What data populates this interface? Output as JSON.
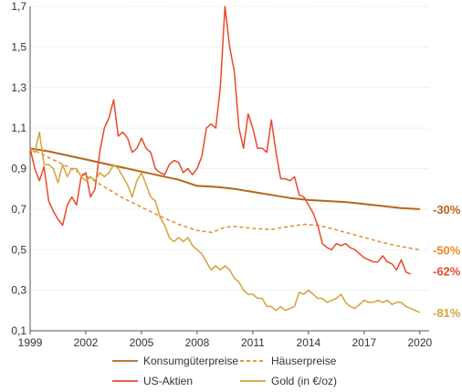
{
  "chart_data": {
    "type": "line",
    "title": "",
    "xlabel": "",
    "ylabel": "",
    "xlim": [
      1999,
      2020.5
    ],
    "ylim": [
      0.1,
      1.7
    ],
    "x_ticks": [
      1999,
      2002,
      2005,
      2008,
      2011,
      2014,
      2017,
      2020
    ],
    "y_ticks": [
      0.1,
      0.3,
      0.5,
      0.7,
      0.9,
      1.1,
      1.3,
      1.5,
      1.7
    ],
    "y_tick_labels": [
      "0,1",
      "0,3",
      "0,5",
      "0,7",
      "0,9",
      "1,1",
      "1,3",
      "1,5",
      "1,7"
    ],
    "grid": "horizontal-dotted",
    "legend_position": "bottom",
    "series": [
      {
        "name": "Konsumgüterpreise",
        "color": "#b5651d",
        "style": "solid",
        "end_label": "-30%",
        "points": [
          [
            1999.0,
            1.0
          ],
          [
            2000.0,
            0.985
          ],
          [
            2001.0,
            0.965
          ],
          [
            2002.0,
            0.945
          ],
          [
            2003.0,
            0.925
          ],
          [
            2004.0,
            0.905
          ],
          [
            2005.0,
            0.885
          ],
          [
            2006.0,
            0.865
          ],
          [
            2007.0,
            0.845
          ],
          [
            2008.0,
            0.815
          ],
          [
            2009.0,
            0.81
          ],
          [
            2010.0,
            0.8
          ],
          [
            2011.0,
            0.785
          ],
          [
            2012.0,
            0.77
          ],
          [
            2013.0,
            0.755
          ],
          [
            2014.0,
            0.745
          ],
          [
            2015.0,
            0.74
          ],
          [
            2016.0,
            0.735
          ],
          [
            2017.0,
            0.725
          ],
          [
            2018.0,
            0.715
          ],
          [
            2019.0,
            0.705
          ],
          [
            2020.0,
            0.7
          ]
        ]
      },
      {
        "name": "Häuserpreise",
        "color": "#e8892e",
        "style": "dashed",
        "end_label": "-50%",
        "points": [
          [
            1999.0,
            1.0
          ],
          [
            2000.0,
            0.955
          ],
          [
            2001.0,
            0.91
          ],
          [
            2002.0,
            0.865
          ],
          [
            2003.0,
            0.81
          ],
          [
            2004.0,
            0.755
          ],
          [
            2005.0,
            0.71
          ],
          [
            2006.0,
            0.665
          ],
          [
            2007.0,
            0.625
          ],
          [
            2008.0,
            0.595
          ],
          [
            2008.8,
            0.585
          ],
          [
            2009.5,
            0.61
          ],
          [
            2010.0,
            0.615
          ],
          [
            2011.0,
            0.605
          ],
          [
            2012.0,
            0.6
          ],
          [
            2013.0,
            0.615
          ],
          [
            2013.8,
            0.625
          ],
          [
            2014.5,
            0.62
          ],
          [
            2015.0,
            0.61
          ],
          [
            2016.0,
            0.585
          ],
          [
            2017.0,
            0.56
          ],
          [
            2018.0,
            0.535
          ],
          [
            2019.0,
            0.515
          ],
          [
            2020.0,
            0.5
          ]
        ]
      },
      {
        "name": "US-Aktien",
        "color": "#e84a2a",
        "style": "solid",
        "end_label": "-62%",
        "points": [
          [
            1999.0,
            1.0
          ],
          [
            1999.25,
            0.9
          ],
          [
            1999.5,
            0.84
          ],
          [
            1999.75,
            0.91
          ],
          [
            2000.0,
            0.74
          ],
          [
            2000.25,
            0.69
          ],
          [
            2000.5,
            0.65
          ],
          [
            2000.75,
            0.62
          ],
          [
            2001.0,
            0.72
          ],
          [
            2001.25,
            0.76
          ],
          [
            2001.5,
            0.72
          ],
          [
            2001.75,
            0.86
          ],
          [
            2002.0,
            0.88
          ],
          [
            2002.25,
            0.76
          ],
          [
            2002.5,
            0.8
          ],
          [
            2002.75,
            0.98
          ],
          [
            2003.0,
            1.1
          ],
          [
            2003.25,
            1.15
          ],
          [
            2003.5,
            1.24
          ],
          [
            2003.75,
            1.06
          ],
          [
            2004.0,
            1.08
          ],
          [
            2004.25,
            1.05
          ],
          [
            2004.5,
            0.98
          ],
          [
            2004.75,
            1.0
          ],
          [
            2005.0,
            1.05
          ],
          [
            2005.25,
            1.0
          ],
          [
            2005.5,
            0.98
          ],
          [
            2005.75,
            0.9
          ],
          [
            2006.0,
            0.88
          ],
          [
            2006.25,
            0.87
          ],
          [
            2006.5,
            0.92
          ],
          [
            2006.75,
            0.94
          ],
          [
            2007.0,
            0.93
          ],
          [
            2007.25,
            0.88
          ],
          [
            2007.5,
            0.9
          ],
          [
            2007.75,
            0.87
          ],
          [
            2008.0,
            0.9
          ],
          [
            2008.25,
            0.96
          ],
          [
            2008.5,
            1.1
          ],
          [
            2008.75,
            1.12
          ],
          [
            2009.0,
            1.1
          ],
          [
            2009.25,
            1.3
          ],
          [
            2009.5,
            1.7
          ],
          [
            2009.75,
            1.5
          ],
          [
            2010.0,
            1.38
          ],
          [
            2010.25,
            1.1
          ],
          [
            2010.5,
            1.0
          ],
          [
            2010.75,
            1.17
          ],
          [
            2011.0,
            1.1
          ],
          [
            2011.25,
            1.0
          ],
          [
            2011.5,
            1.0
          ],
          [
            2011.75,
            0.98
          ],
          [
            2012.0,
            1.14
          ],
          [
            2012.25,
            0.98
          ],
          [
            2012.5,
            0.85
          ],
          [
            2012.75,
            0.85
          ],
          [
            2013.0,
            0.84
          ],
          [
            2013.25,
            0.86
          ],
          [
            2013.5,
            0.77
          ],
          [
            2013.75,
            0.76
          ],
          [
            2014.0,
            0.72
          ],
          [
            2014.25,
            0.68
          ],
          [
            2014.5,
            0.62
          ],
          [
            2014.75,
            0.53
          ],
          [
            2015.0,
            0.51
          ],
          [
            2015.25,
            0.5
          ],
          [
            2015.5,
            0.53
          ],
          [
            2015.75,
            0.52
          ],
          [
            2016.0,
            0.53
          ],
          [
            2016.25,
            0.51
          ],
          [
            2016.5,
            0.5
          ],
          [
            2016.75,
            0.48
          ],
          [
            2017.0,
            0.46
          ],
          [
            2017.25,
            0.45
          ],
          [
            2017.5,
            0.44
          ],
          [
            2017.75,
            0.44
          ],
          [
            2018.0,
            0.47
          ],
          [
            2018.25,
            0.44
          ],
          [
            2018.5,
            0.43
          ],
          [
            2018.75,
            0.4
          ],
          [
            2019.0,
            0.45
          ],
          [
            2019.25,
            0.39
          ],
          [
            2019.5,
            0.38
          ]
        ]
      },
      {
        "name": "Gold (in €/oz)",
        "color": "#d4a33a",
        "style": "solid",
        "end_label": "-81%",
        "points": [
          [
            1999.0,
            1.0
          ],
          [
            1999.25,
            0.98
          ],
          [
            1999.5,
            1.08
          ],
          [
            1999.75,
            0.92
          ],
          [
            2000.0,
            0.92
          ],
          [
            2000.25,
            0.9
          ],
          [
            2000.5,
            0.83
          ],
          [
            2000.75,
            0.92
          ],
          [
            2001.0,
            0.86
          ],
          [
            2001.25,
            0.9
          ],
          [
            2001.5,
            0.9
          ],
          [
            2001.75,
            0.86
          ],
          [
            2002.0,
            0.84
          ],
          [
            2002.25,
            0.86
          ],
          [
            2002.5,
            0.84
          ],
          [
            2002.75,
            0.88
          ],
          [
            2003.0,
            0.86
          ],
          [
            2003.25,
            0.88
          ],
          [
            2003.5,
            0.92
          ],
          [
            2003.75,
            0.9
          ],
          [
            2004.0,
            0.86
          ],
          [
            2004.25,
            0.82
          ],
          [
            2004.5,
            0.76
          ],
          [
            2004.75,
            0.84
          ],
          [
            2005.0,
            0.88
          ],
          [
            2005.25,
            0.82
          ],
          [
            2005.5,
            0.76
          ],
          [
            2005.75,
            0.74
          ],
          [
            2006.0,
            0.66
          ],
          [
            2006.25,
            0.62
          ],
          [
            2006.5,
            0.56
          ],
          [
            2006.75,
            0.54
          ],
          [
            2007.0,
            0.56
          ],
          [
            2007.25,
            0.54
          ],
          [
            2007.5,
            0.56
          ],
          [
            2007.75,
            0.52
          ],
          [
            2008.0,
            0.5
          ],
          [
            2008.25,
            0.48
          ],
          [
            2008.5,
            0.44
          ],
          [
            2008.75,
            0.4
          ],
          [
            2009.0,
            0.42
          ],
          [
            2009.25,
            0.4
          ],
          [
            2009.5,
            0.42
          ],
          [
            2009.75,
            0.4
          ],
          [
            2010.0,
            0.36
          ],
          [
            2010.25,
            0.34
          ],
          [
            2010.5,
            0.3
          ],
          [
            2010.75,
            0.28
          ],
          [
            2011.0,
            0.28
          ],
          [
            2011.25,
            0.26
          ],
          [
            2011.5,
            0.26
          ],
          [
            2011.75,
            0.22
          ],
          [
            2012.0,
            0.22
          ],
          [
            2012.25,
            0.2
          ],
          [
            2012.5,
            0.22
          ],
          [
            2012.75,
            0.2
          ],
          [
            2013.0,
            0.21
          ],
          [
            2013.25,
            0.22
          ],
          [
            2013.5,
            0.29
          ],
          [
            2013.75,
            0.28
          ],
          [
            2014.0,
            0.3
          ],
          [
            2014.25,
            0.28
          ],
          [
            2014.5,
            0.26
          ],
          [
            2014.75,
            0.26
          ],
          [
            2015.0,
            0.24
          ],
          [
            2015.25,
            0.25
          ],
          [
            2015.5,
            0.26
          ],
          [
            2015.75,
            0.28
          ],
          [
            2016.0,
            0.24
          ],
          [
            2016.25,
            0.22
          ],
          [
            2016.5,
            0.21
          ],
          [
            2016.75,
            0.23
          ],
          [
            2017.0,
            0.25
          ],
          [
            2017.25,
            0.24
          ],
          [
            2017.5,
            0.24
          ],
          [
            2017.75,
            0.25
          ],
          [
            2018.0,
            0.24
          ],
          [
            2018.25,
            0.25
          ],
          [
            2018.5,
            0.23
          ],
          [
            2018.75,
            0.24
          ],
          [
            2019.0,
            0.24
          ],
          [
            2019.25,
            0.22
          ],
          [
            2019.5,
            0.21
          ],
          [
            2019.75,
            0.2
          ],
          [
            2020.0,
            0.19
          ]
        ]
      }
    ]
  }
}
